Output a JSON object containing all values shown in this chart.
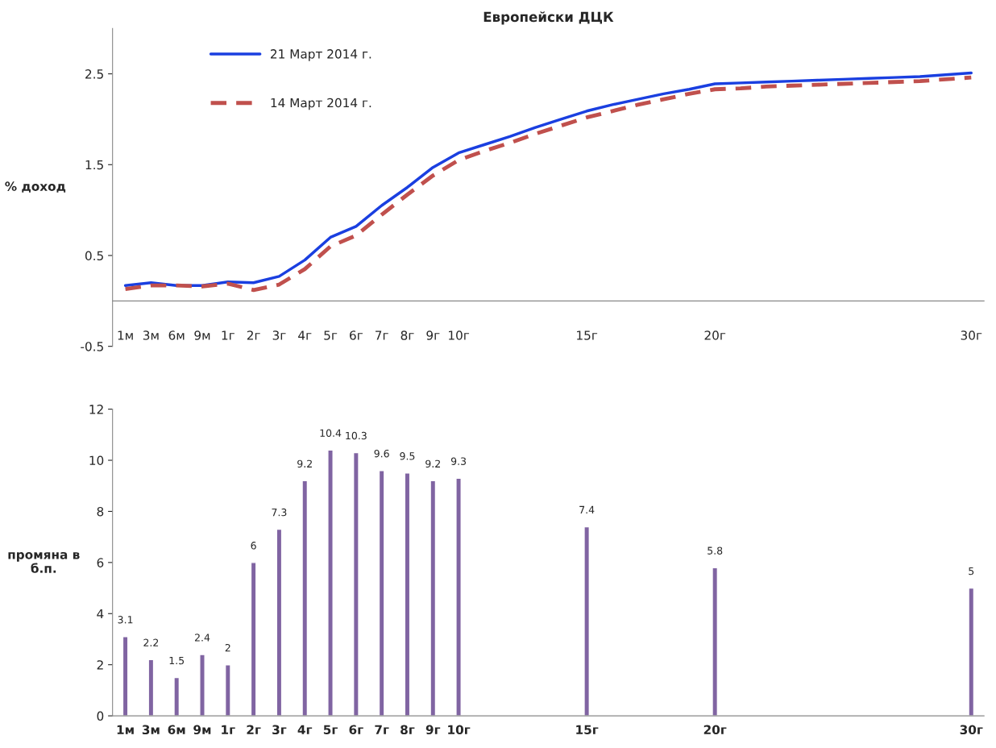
{
  "chart_data": [
    {
      "type": "line",
      "title": "Европейски ДЦК",
      "ylabel": "% доход",
      "categories": [
        "1м",
        "3м",
        "6м",
        "9м",
        "1г",
        "2г",
        "3г",
        "4г",
        "5г",
        "6г",
        "7г",
        "8г",
        "9г",
        "10г",
        null,
        null,
        null,
        null,
        "15г",
        null,
        null,
        null,
        null,
        "20г",
        null,
        null,
        null,
        null,
        null,
        null,
        null,
        null,
        null,
        "30г"
      ],
      "series": [
        {
          "name": "21 Март 2014 г.",
          "color": "#1a3fe0",
          "line_style": "solid",
          "values": [
            0.17,
            0.2,
            0.17,
            0.17,
            0.21,
            0.2,
            0.27,
            0.45,
            0.7,
            0.82,
            1.05,
            1.25,
            1.47,
            1.63,
            1.72,
            1.81,
            1.91,
            2.0,
            2.09,
            2.16,
            2.22,
            2.28,
            2.33,
            2.39,
            2.4,
            2.41,
            2.42,
            2.43,
            2.44,
            2.45,
            2.46,
            2.47,
            2.49,
            2.51
          ]
        },
        {
          "name": "14 Март 2014 г.",
          "color": "#c0504d",
          "line_style": "dashed",
          "values": [
            0.13,
            0.17,
            0.17,
            0.16,
            0.19,
            0.12,
            0.18,
            0.35,
            0.6,
            0.72,
            0.95,
            1.17,
            1.38,
            1.55,
            1.65,
            1.74,
            1.84,
            1.93,
            2.02,
            2.09,
            2.16,
            2.22,
            2.28,
            2.33,
            2.34,
            2.36,
            2.37,
            2.38,
            2.39,
            2.4,
            2.41,
            2.42,
            2.44,
            2.46
          ]
        }
      ],
      "ylim": [
        -0.5,
        3.0
      ],
      "yticks": [
        -0.5,
        0.5,
        1.5,
        2.5
      ],
      "legend": "top left",
      "grid": false,
      "marker": "none"
    },
    {
      "type": "bar",
      "ylabel": "промяна в\nб.п.",
      "categories": [
        "1м",
        "3м",
        "6м",
        "9м",
        "1г",
        "2г",
        "3г",
        "4г",
        "5г",
        "6г",
        "7г",
        "8г",
        "9г",
        "10г",
        null,
        null,
        null,
        null,
        "15г",
        null,
        null,
        null,
        null,
        "20г",
        null,
        null,
        null,
        null,
        null,
        null,
        null,
        null,
        null,
        "30г"
      ],
      "values": [
        3.1,
        2.2,
        1.5,
        2.4,
        2,
        6,
        7.3,
        9.2,
        10.4,
        10.3,
        9.6,
        9.5,
        9.2,
        9.3,
        null,
        null,
        null,
        null,
        7.4,
        null,
        null,
        null,
        null,
        5.8,
        null,
        null,
        null,
        null,
        null,
        null,
        null,
        null,
        null,
        5
      ],
      "color": "#8064a2",
      "ylim": [
        0,
        12
      ],
      "yticks": [
        0,
        2,
        4,
        6,
        8,
        10,
        12
      ],
      "data_labels": true,
      "grid": false
    }
  ]
}
